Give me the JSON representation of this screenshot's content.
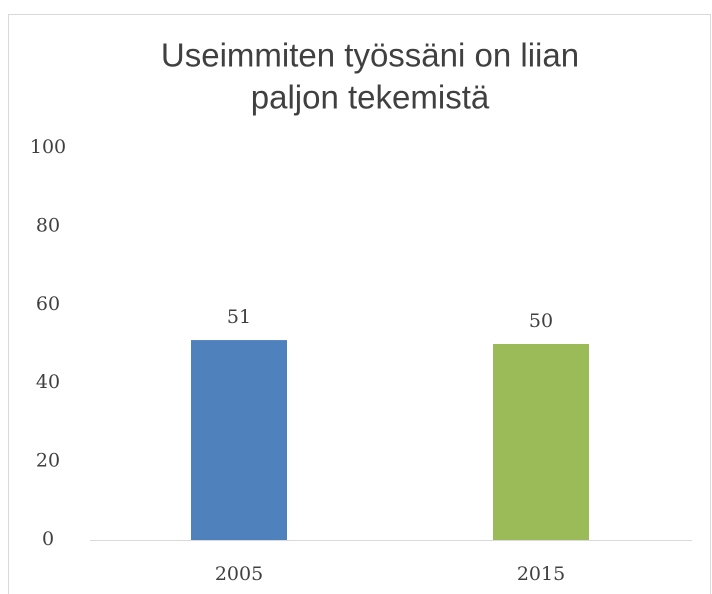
{
  "chart_data": {
    "type": "bar",
    "title": [
      "Useimmiten työssäni on liian",
      "paljon tekemistä"
    ],
    "categories": [
      "2005",
      "2015"
    ],
    "values": [
      51,
      50
    ],
    "colors": [
      "#4f81bd",
      "#9bbb59"
    ],
    "ylim": [
      0,
      100
    ],
    "yticks": [
      0,
      20,
      40,
      60,
      80,
      100
    ],
    "grid": false
  }
}
